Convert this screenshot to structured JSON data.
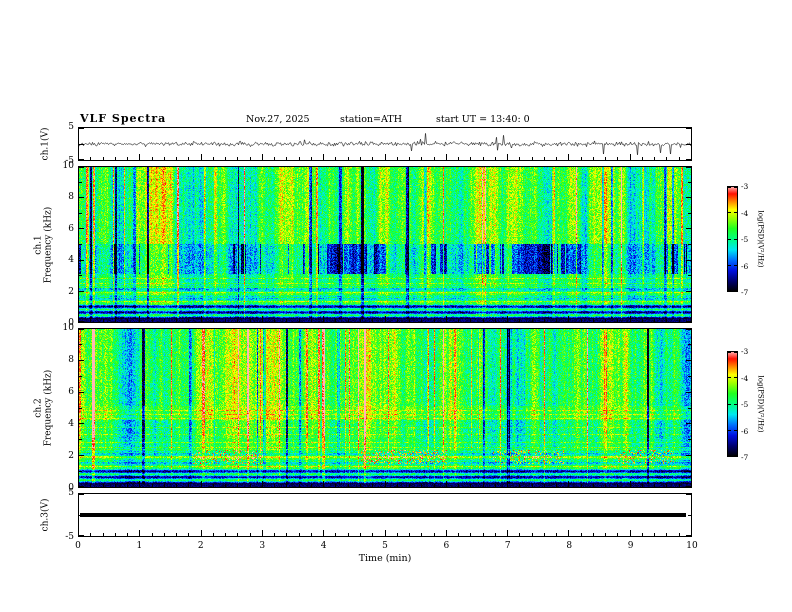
{
  "header": {
    "title": "VLF  Spectra",
    "date": "Nov.27, 2025",
    "station": "station=ATH",
    "start_ut": "start UT  =  13:40: 0"
  },
  "xaxis": {
    "label": "Time  (min)",
    "min": 0,
    "max": 10,
    "ticks": [
      "0",
      "1",
      "2",
      "3",
      "4",
      "5",
      "6",
      "7",
      "8",
      "9",
      "10"
    ]
  },
  "panels": [
    {
      "id": "ch1-wave",
      "ylabel": "ch.1(V)",
      "ymin": -5,
      "ymax": 5,
      "ytick_vals": [
        5,
        -5
      ],
      "yticks": [
        "5",
        "-5"
      ]
    },
    {
      "id": "ch1-spec",
      "ylabel_line1": "ch.1",
      "ylabel_line2": "Frequency (kHz)",
      "ymin": 0,
      "ymax": 10,
      "ytick_vals": [
        10,
        8,
        6,
        4,
        2,
        0
      ],
      "yticks": [
        "10",
        "8",
        "6",
        "4",
        "2",
        "0"
      ]
    },
    {
      "id": "ch2-spec",
      "ylabel_line1": "ch.2",
      "ylabel_line2": "Frequency (kHz)",
      "ymin": 0,
      "ymax": 10,
      "ytick_vals": [
        10,
        8,
        6,
        4,
        2,
        0
      ],
      "yticks": [
        "10",
        "8",
        "6",
        "4",
        "2",
        "0"
      ]
    },
    {
      "id": "ch3-wave",
      "ylabel": "ch.3(V)",
      "ymin": -5,
      "ymax": 5,
      "ytick_vals": [
        5,
        -5
      ],
      "yticks": [
        "5",
        "-5"
      ]
    }
  ],
  "colorbar": {
    "label": "log(PSD)(V²/Hz)",
    "min": -7,
    "max": -3,
    "tick_vals": [
      -3,
      -4,
      -5,
      -6,
      -7
    ],
    "ticks": [
      "-3",
      "-4",
      "-5",
      "-6",
      "-7"
    ],
    "stops": [
      {
        "p": 0.0,
        "c": "#000000"
      },
      {
        "p": 0.1,
        "c": "#000070"
      },
      {
        "p": 0.2,
        "c": "#0010e0"
      },
      {
        "p": 0.3,
        "c": "#0070ff"
      },
      {
        "p": 0.4,
        "c": "#00e8f0"
      },
      {
        "p": 0.5,
        "c": "#00ff80"
      },
      {
        "p": 0.6,
        "c": "#20ff20"
      },
      {
        "p": 0.7,
        "c": "#a0ff00"
      },
      {
        "p": 0.78,
        "c": "#ffff00"
      },
      {
        "p": 0.86,
        "c": "#ff8000"
      },
      {
        "p": 0.93,
        "c": "#ff1000"
      },
      {
        "p": 1.0,
        "c": "#ffb6b6"
      }
    ]
  },
  "chart_data": [
    {
      "type": "line",
      "title": "ch.1 time series",
      "ylabel": "ch.1(V)",
      "xlim": [
        0,
        10
      ],
      "ylim": [
        -5,
        5
      ],
      "description": "Dense broadband noise centered on 0 V, typical amplitude about ±1 V, with frequent impulsive sferic spikes reaching roughly ±4 V across the full 10 minutes"
    },
    {
      "type": "heatmap",
      "title": "ch.1 spectrogram",
      "xlabel": "Time (min)",
      "ylabel": "Frequency (kHz)",
      "xlim": [
        0,
        10
      ],
      "ylim": [
        0,
        10
      ],
      "zlabel": "log(PSD)(V²/Hz)",
      "zlim": [
        -7,
        -3
      ],
      "features": [
        "background PSD near -5 (green/cyan) above 3 kHz",
        "many narrow vertical bright stripes up to about -3.5 (yellow/orange/red) from impulsive events",
        "scattered dark-blue vertical gaps near -6.5 between about 3 and 5 kHz",
        "dense horizontal banding below ~2.5 kHz alternating dark (-7) and green (-5) lines",
        "near-black band from 0 to ~0.3 kHz"
      ]
    },
    {
      "type": "heatmap",
      "title": "ch.2 spectrogram",
      "xlabel": "Time (min)",
      "ylabel": "Frequency (kHz)",
      "xlim": [
        0,
        10
      ],
      "ylim": [
        0,
        10
      ],
      "zlabel": "log(PSD)(V²/Hz)",
      "zlim": [
        -7,
        -3
      ],
      "features": [
        "background PSD near -5 (green, yellow-tinged) above 5 kHz",
        "bright band with fine horizontal lines near 4.3-5 kHz",
        "vertical bright and dark stripes similar to ch.1",
        "orange speckled patches near 1.5-2.3 kHz around minutes 1.9-3.0, 4.6-6.0, 6.8-7.9 and 8.8-9.7",
        "dense horizontal banding below ~2.5 kHz, near-black band from 0 to ~0.3 kHz"
      ]
    },
    {
      "type": "line",
      "title": "ch.3 time series",
      "ylabel": "ch.3(V)",
      "xlim": [
        0,
        10
      ],
      "ylim": [
        -5,
        5
      ],
      "description": "Flat constant trace at 0 V (thick black line), no signal on channel 3"
    }
  ]
}
